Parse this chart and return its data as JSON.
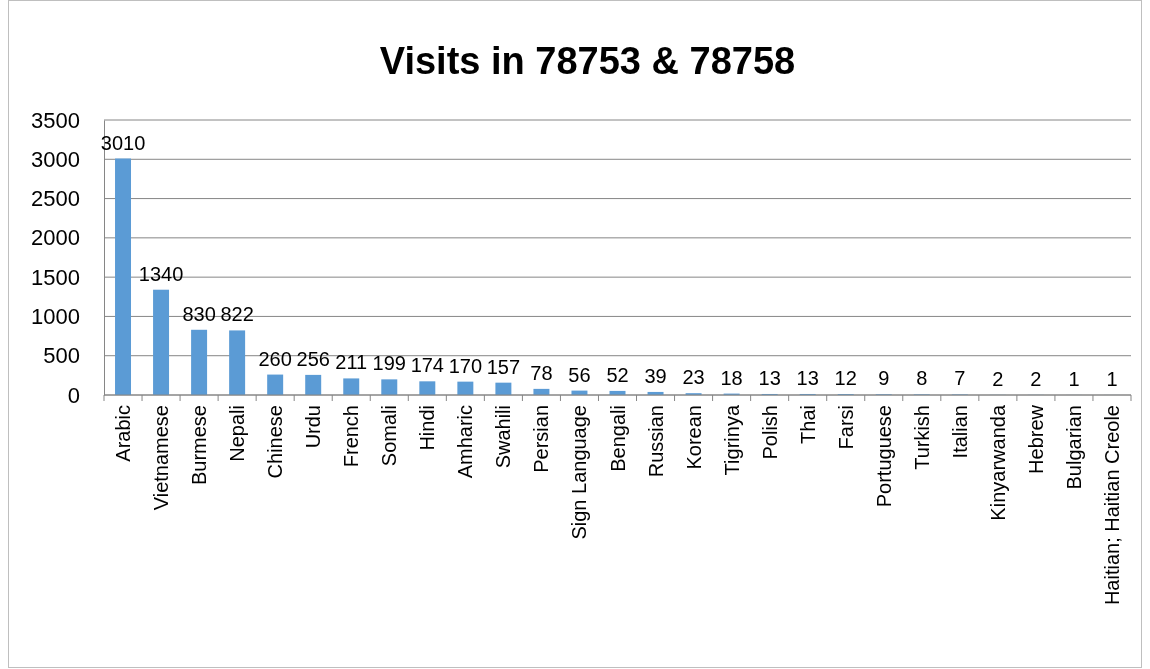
{
  "chart_data": {
    "type": "bar",
    "title": "Visits in 78753 & 78758",
    "categories": [
      "Arabic",
      "Vietnamese",
      "Burmese",
      "Nepali",
      "Chinese",
      "Urdu",
      "French",
      "Somali",
      "Hindi",
      "Amharic",
      "Swahili",
      "Persian",
      "Sign Language",
      "Bengali",
      "Russian",
      "Korean",
      "Tigrinya",
      "Polish",
      "Thai",
      "Farsi",
      "Portuguese",
      "Turkish",
      "Italian",
      "Kinyarwanda",
      "Hebrew",
      "Bulgarian",
      "Haitian; Haitian Creole"
    ],
    "values": [
      3010,
      1340,
      830,
      822,
      260,
      256,
      211,
      199,
      174,
      170,
      157,
      78,
      56,
      52,
      39,
      23,
      18,
      13,
      13,
      12,
      9,
      8,
      7,
      2,
      2,
      1,
      1
    ],
    "color": "#5b9bd5",
    "ylim": [
      0,
      3500
    ],
    "yticks": [
      0,
      500,
      1000,
      1500,
      2000,
      2500,
      3000,
      3500
    ],
    "grid": "y",
    "data_labels": true
  }
}
